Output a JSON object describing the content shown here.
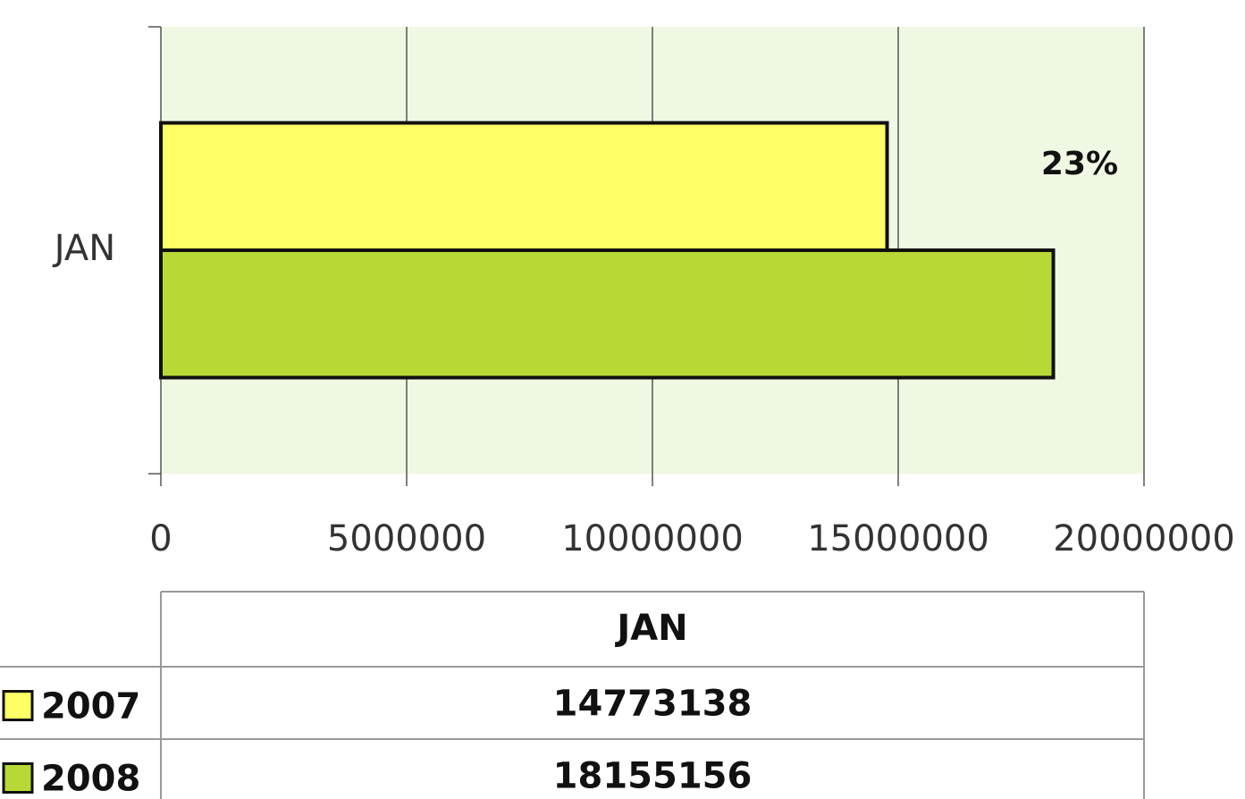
{
  "chart_data": {
    "type": "bar",
    "orientation": "horizontal",
    "categories": [
      "JAN"
    ],
    "series": [
      {
        "name": "2007",
        "color": "#ffff66",
        "values": [
          14773138
        ]
      },
      {
        "name": "2008",
        "color": "#b8d935",
        "values": [
          18155156
        ]
      }
    ],
    "annotation": "23%",
    "xlim": [
      0,
      20000000
    ],
    "xticks": [
      0,
      5000000,
      10000000,
      15000000,
      20000000
    ],
    "grid": true,
    "plot_background": "#eff8e2"
  }
}
